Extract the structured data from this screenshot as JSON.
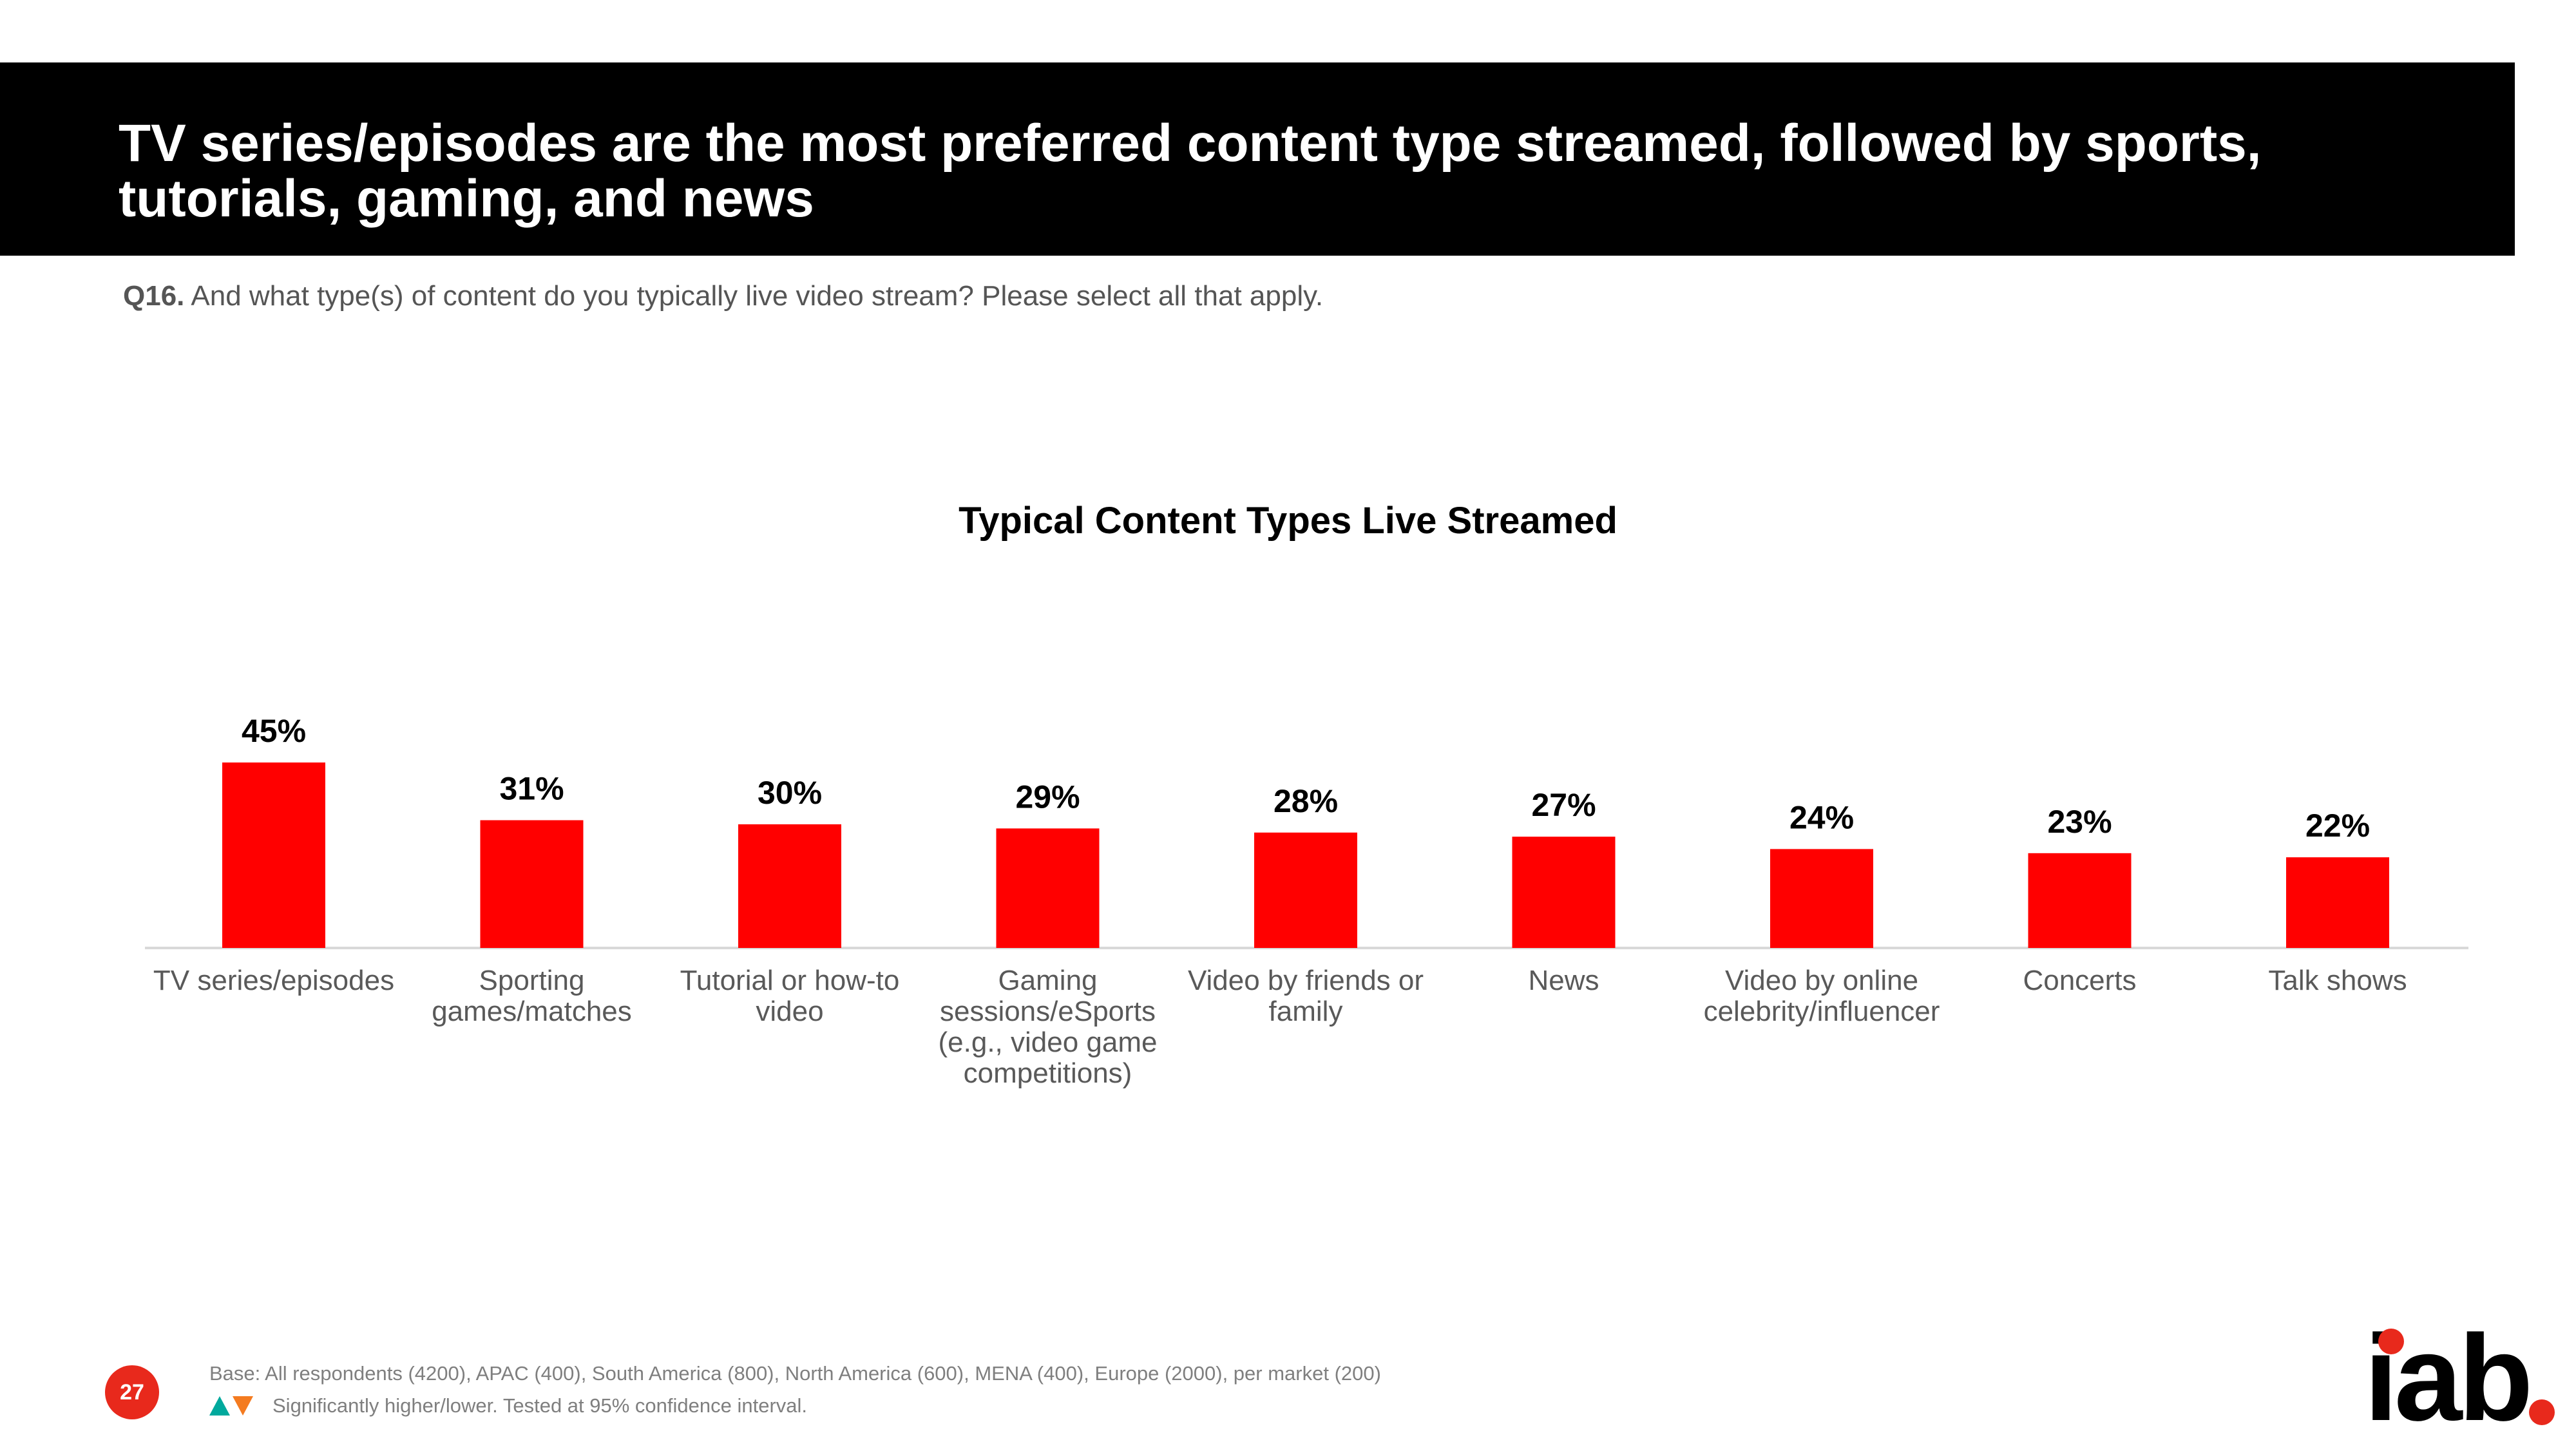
{
  "header": {
    "title": "TV series/episodes are the most preferred content type streamed, followed by sports, tutorials, gaming, and news"
  },
  "question": {
    "number": "Q16.",
    "text": "And what type(s) of content do you typically live video stream? Please select all that apply."
  },
  "chart_data": {
    "type": "bar",
    "title": "Typical Content Types Live Streamed",
    "xlabel": "",
    "ylabel": "",
    "categories": [
      "TV series/episodes",
      "Sporting games/matches",
      "Tutorial or how-to video",
      "Gaming sessions/eSports (e.g., video game competitions)",
      "Video by friends or family",
      "News",
      "Video by online celebrity/influencer",
      "Concerts",
      "Talk shows"
    ],
    "category_lines": [
      [
        "TV series/episodes"
      ],
      [
        "Sporting",
        "games/matches"
      ],
      [
        "Tutorial or how-to",
        "video"
      ],
      [
        "Gaming",
        "sessions/eSports",
        "(e.g., video game",
        "competitions)"
      ],
      [
        "Video by friends or",
        "family"
      ],
      [
        "News"
      ],
      [
        "Video by online",
        "celebrity/influencer"
      ],
      [
        "Concerts"
      ],
      [
        "Talk shows"
      ]
    ],
    "values": [
      45,
      31,
      30,
      29,
      28,
      27,
      24,
      23,
      22
    ],
    "value_labels": [
      "45%",
      "31%",
      "30%",
      "29%",
      "28%",
      "27%",
      "24%",
      "23%",
      "22%"
    ],
    "ylim": [
      0,
      100
    ],
    "grid": false,
    "bar_color": "#ff0000"
  },
  "footer": {
    "base": "Base: All respondents (4200), APAC (400), South America (800), North America (600), MENA (400), Europe (2000), per market (200)",
    "significance": "Significantly higher/lower. Tested at 95% confidence interval.",
    "page_number": "27",
    "logo_text": "iab",
    "colors": {
      "accent": "#e8291c",
      "up": "#00a99d",
      "down": "#f47b20"
    }
  }
}
